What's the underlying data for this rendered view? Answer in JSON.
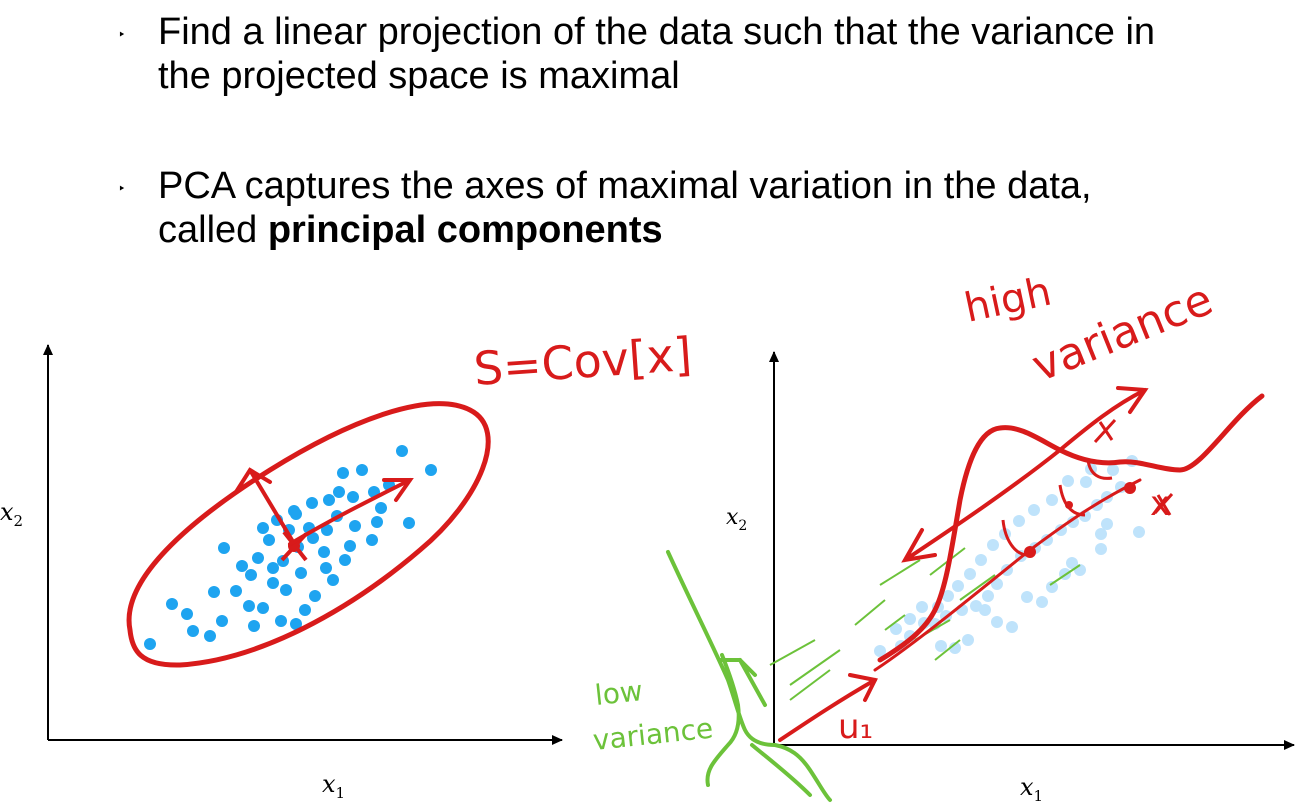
{
  "bullets": [
    {
      "marker": "‣",
      "line1": "Find a linear projection of the data such that the variance in",
      "line2": "the projected space is maximal"
    },
    {
      "marker": "‣",
      "line1": "PCA captures the axes of maximal variation in the data,",
      "line2_prefix": "called ",
      "line2_bold": "principal components"
    }
  ],
  "left_plot": {
    "x_axis_label": "x",
    "x_axis_sub": "1",
    "y_axis_label": "x",
    "y_axis_sub": "2",
    "annotation": "S=Cov[x]",
    "points": [
      [
        150,
        644
      ],
      [
        172,
        604
      ],
      [
        187,
        614
      ],
      [
        210,
        636
      ],
      [
        222,
        621
      ],
      [
        193,
        631
      ],
      [
        214,
        592
      ],
      [
        236,
        591
      ],
      [
        249,
        606
      ],
      [
        263,
        608
      ],
      [
        254,
        626
      ],
      [
        281,
        621
      ],
      [
        296,
        624
      ],
      [
        305,
        610
      ],
      [
        315,
        596
      ],
      [
        273,
        583
      ],
      [
        286,
        590
      ],
      [
        301,
        573
      ],
      [
        326,
        568
      ],
      [
        345,
        560
      ],
      [
        333,
        580
      ],
      [
        242,
        566
      ],
      [
        258,
        558
      ],
      [
        224,
        548
      ],
      [
        251,
        575
      ],
      [
        273,
        568
      ],
      [
        283,
        561
      ],
      [
        298,
        547
      ],
      [
        313,
        538
      ],
      [
        327,
        530
      ],
      [
        337,
        516
      ],
      [
        324,
        552
      ],
      [
        350,
        546
      ],
      [
        355,
        526
      ],
      [
        372,
        540
      ],
      [
        377,
        522
      ],
      [
        381,
        508
      ],
      [
        374,
        492
      ],
      [
        353,
        497
      ],
      [
        339,
        492
      ],
      [
        329,
        500
      ],
      [
        312,
        503
      ],
      [
        294,
        511
      ],
      [
        277,
        520
      ],
      [
        289,
        530
      ],
      [
        309,
        528
      ],
      [
        362,
        470
      ],
      [
        389,
        485
      ],
      [
        402,
        451
      ],
      [
        409,
        523
      ],
      [
        431,
        470
      ],
      [
        343,
        473
      ],
      [
        296,
        514
      ],
      [
        269,
        540
      ],
      [
        263,
        528
      ]
    ],
    "point_color": "#1ea4f0",
    "ink_color": "#d81b1b"
  },
  "right_plot": {
    "x_axis_label": "x",
    "x_axis_sub": "1",
    "y_axis_label": "x",
    "y_axis_sub": "2",
    "annotation_high": "high",
    "annotation_variance": "variance",
    "annotation_low": "low",
    "annotation_low_variance": "variance",
    "annotation_u": "u₁",
    "annotation_x": "x",
    "points": [
      [
        880,
        651
      ],
      [
        896,
        629
      ],
      [
        910,
        619
      ],
      [
        922,
        607
      ],
      [
        935,
        624
      ],
      [
        946,
        616
      ],
      [
        962,
        610
      ],
      [
        976,
        606
      ],
      [
        988,
        596
      ],
      [
        997,
        584
      ],
      [
        1007,
        570
      ],
      [
        1021,
        556
      ],
      [
        1035,
        548
      ],
      [
        1047,
        540
      ],
      [
        1061,
        530
      ],
      [
        1073,
        522
      ],
      [
        1085,
        516
      ],
      [
        1097,
        505
      ],
      [
        1107,
        497
      ],
      [
        1121,
        487
      ],
      [
        1132,
        461
      ],
      [
        1101,
        534
      ],
      [
        1101,
        549
      ],
      [
        1139,
        532
      ],
      [
        1086,
        482
      ],
      [
        1068,
        481
      ],
      [
        1052,
        500
      ],
      [
        1034,
        510
      ],
      [
        1019,
        521
      ],
      [
        1005,
        534
      ],
      [
        993,
        545
      ],
      [
        981,
        560
      ],
      [
        970,
        574
      ],
      [
        958,
        586
      ],
      [
        948,
        596
      ],
      [
        938,
        607
      ],
      [
        924,
        623
      ],
      [
        910,
        636
      ],
      [
        901,
        646
      ],
      [
        1072,
        563
      ],
      [
        1065,
        574
      ],
      [
        1052,
        587
      ],
      [
        1042,
        602
      ],
      [
        1027,
        597
      ],
      [
        1012,
        627
      ],
      [
        997,
        622
      ],
      [
        985,
        610
      ],
      [
        968,
        640
      ],
      [
        955,
        648
      ],
      [
        941,
        646
      ],
      [
        1113,
        470
      ],
      [
        1091,
        469
      ],
      [
        1107,
        524
      ],
      [
        1080,
        570
      ]
    ],
    "point_color": "#bfe3fb",
    "ink_color": "#d81b1b",
    "green_color": "#6cc23a"
  }
}
